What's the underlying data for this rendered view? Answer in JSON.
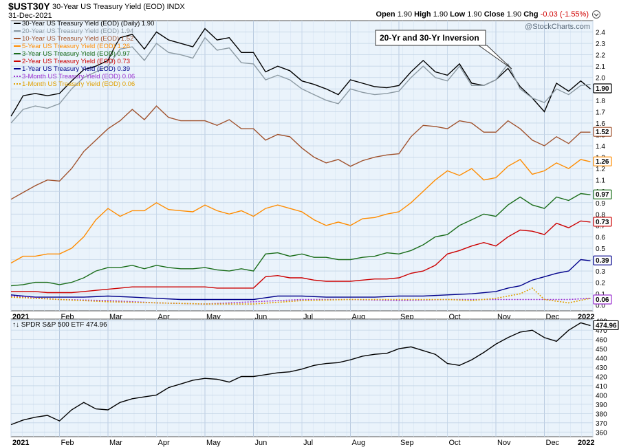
{
  "header": {
    "symbol": "$UST30Y",
    "description": "30-Year US Treasury Yield (EOD) INDX",
    "date": "31-Dec-2021",
    "open_label": "Open",
    "open": "1.90",
    "high_label": "High",
    "high": "1.90",
    "low_label": "Low",
    "low": "1.90",
    "close_label": "Close",
    "close": "1.90",
    "chg_label": "Chg",
    "chg": "-0.03 (-1.55%)",
    "chg_color": "#d00000"
  },
  "watermark": "@StockCharts.com",
  "annotation": "20-Yr and 30-Yr Inversion",
  "chart_data": [
    {
      "type": "line",
      "x_labels": [
        "2021",
        "Feb",
        "Mar",
        "Apr",
        "May",
        "Jun",
        "Jul",
        "Aug",
        "Sep",
        "Oct",
        "Nov",
        "Dec",
        "2022"
      ],
      "x_label_positions": [
        0,
        1,
        2,
        3,
        4,
        5,
        6,
        7,
        8,
        9,
        10,
        11,
        12
      ],
      "ylim": [
        -0.05,
        2.5
      ],
      "yticks": [
        "2.4",
        "2.3",
        "2.2",
        "2.1",
        "2.0",
        "1.9",
        "1.8",
        "1.7",
        "1.6",
        "1.5",
        "1.4",
        "1.3",
        "1.2",
        "1.1",
        "1.0",
        "0.9",
        "0.8",
        "0.7",
        "0.6",
        "0.5",
        "0.4",
        "0.3",
        "0.2",
        "0.1",
        "0.0"
      ],
      "grid": true,
      "legend_position": "top-left",
      "series": [
        {
          "name": "30-Year US Treasury Yield (EOD) (Daily) 1.90",
          "color": "#000000",
          "style": "solid",
          "badge": "1.90",
          "x": [
            0,
            0.1,
            0.25,
            0.5,
            0.75,
            1,
            1.25,
            1.5,
            1.75,
            2,
            2.15,
            2.25,
            2.5,
            2.75,
            3,
            3.25,
            3.5,
            3.75,
            4,
            4.25,
            4.5,
            4.75,
            5,
            5.25,
            5.5,
            5.75,
            6,
            6.25,
            6.5,
            6.75,
            7,
            7.25,
            7.5,
            7.75,
            8,
            8.25,
            8.5,
            8.75,
            9,
            9.25,
            9.5,
            9.75,
            10,
            10.25,
            10.5,
            10.75,
            11,
            11.25,
            11.5,
            11.75,
            11.95
          ],
          "y": [
            1.66,
            1.73,
            1.84,
            1.86,
            1.84,
            1.86,
            1.97,
            2.07,
            2.1,
            2.15,
            2.28,
            2.35,
            2.38,
            2.25,
            2.4,
            2.33,
            2.3,
            2.27,
            2.43,
            2.33,
            2.35,
            2.22,
            2.22,
            2.05,
            2.1,
            2.06,
            1.97,
            1.94,
            1.9,
            1.85,
            1.98,
            1.95,
            1.92,
            1.91,
            1.93,
            2.05,
            2.15,
            2.05,
            2.02,
            2.12,
            1.95,
            1.93,
            1.98,
            2.08,
            1.92,
            1.82,
            1.7,
            1.95,
            1.88,
            1.97,
            1.9
          ]
        },
        {
          "name": "20-Year US Treasury Yield (EOD) 1.94",
          "color": "#8c9aa3",
          "style": "solid",
          "badge": "1.94",
          "x": [
            0,
            0.25,
            0.5,
            0.75,
            1,
            1.25,
            1.5,
            1.75,
            2,
            2.25,
            2.5,
            2.75,
            3,
            3.25,
            3.5,
            3.75,
            4,
            4.25,
            4.5,
            4.75,
            5,
            5.25,
            5.5,
            5.75,
            6,
            6.25,
            6.5,
            6.75,
            7,
            7.25,
            7.5,
            7.75,
            8,
            8.25,
            8.5,
            8.75,
            9,
            9.25,
            9.5,
            9.75,
            10,
            10.25,
            10.5,
            10.75,
            11,
            11.25,
            11.5,
            11.75,
            11.95
          ],
          "y": [
            1.6,
            1.72,
            1.75,
            1.73,
            1.77,
            1.9,
            2.0,
            2.05,
            2.1,
            2.25,
            2.27,
            2.15,
            2.3,
            2.22,
            2.2,
            2.17,
            2.35,
            2.24,
            2.26,
            2.13,
            2.12,
            1.98,
            2.02,
            1.98,
            1.9,
            1.85,
            1.8,
            1.77,
            1.9,
            1.87,
            1.85,
            1.86,
            1.88,
            2.0,
            2.1,
            2.0,
            1.97,
            2.1,
            1.93,
            1.93,
            1.98,
            2.12,
            1.9,
            1.82,
            1.78,
            1.9,
            1.85,
            1.93,
            1.94
          ]
        },
        {
          "name": "10-Year US Treasury Yield (EOD) 1.52",
          "color": "#a0522d",
          "style": "solid",
          "badge": "1.52",
          "x": [
            0,
            0.25,
            0.5,
            0.75,
            1,
            1.25,
            1.5,
            1.75,
            2,
            2.25,
            2.5,
            2.75,
            3,
            3.25,
            3.5,
            3.75,
            4,
            4.25,
            4.5,
            4.75,
            5,
            5.25,
            5.5,
            5.75,
            6,
            6.25,
            6.5,
            6.75,
            7,
            7.25,
            7.5,
            7.75,
            8,
            8.25,
            8.5,
            8.75,
            9,
            9.25,
            9.5,
            9.75,
            10,
            10.25,
            10.5,
            10.75,
            11,
            11.25,
            11.5,
            11.75,
            11.95
          ],
          "y": [
            0.93,
            0.99,
            1.05,
            1.1,
            1.09,
            1.2,
            1.35,
            1.45,
            1.55,
            1.62,
            1.72,
            1.63,
            1.75,
            1.65,
            1.62,
            1.62,
            1.62,
            1.58,
            1.63,
            1.55,
            1.55,
            1.45,
            1.5,
            1.48,
            1.38,
            1.3,
            1.25,
            1.28,
            1.22,
            1.27,
            1.3,
            1.32,
            1.33,
            1.48,
            1.58,
            1.57,
            1.55,
            1.62,
            1.6,
            1.52,
            1.52,
            1.62,
            1.55,
            1.45,
            1.4,
            1.48,
            1.42,
            1.52,
            1.52
          ]
        },
        {
          "name": "5-Year US Treasury Yield (EOD) 1.26",
          "color": "#ff8c00",
          "style": "solid",
          "badge": "1.26",
          "x": [
            0,
            0.25,
            0.5,
            0.75,
            1,
            1.25,
            1.5,
            1.75,
            2,
            2.25,
            2.5,
            2.75,
            3,
            3.25,
            3.5,
            3.75,
            4,
            4.25,
            4.5,
            4.75,
            5,
            5.25,
            5.5,
            5.75,
            6,
            6.25,
            6.5,
            6.75,
            7,
            7.25,
            7.5,
            7.75,
            8,
            8.25,
            8.5,
            8.75,
            9,
            9.25,
            9.5,
            9.75,
            10,
            10.25,
            10.5,
            10.75,
            11,
            11.25,
            11.5,
            11.75,
            11.95
          ],
          "y": [
            0.37,
            0.43,
            0.43,
            0.45,
            0.45,
            0.5,
            0.6,
            0.75,
            0.85,
            0.78,
            0.83,
            0.83,
            0.9,
            0.84,
            0.83,
            0.82,
            0.88,
            0.83,
            0.8,
            0.83,
            0.78,
            0.85,
            0.88,
            0.85,
            0.82,
            0.75,
            0.7,
            0.73,
            0.7,
            0.76,
            0.77,
            0.8,
            0.82,
            0.9,
            1.0,
            1.1,
            1.18,
            1.14,
            1.2,
            1.1,
            1.12,
            1.22,
            1.28,
            1.15,
            1.18,
            1.25,
            1.2,
            1.28,
            1.26
          ]
        },
        {
          "name": "3-Year US Treasury Yield (EOD) 0.97",
          "color": "#1a6d1a",
          "style": "solid",
          "badge": "0.97",
          "x": [
            0,
            0.25,
            0.5,
            0.75,
            1,
            1.25,
            1.5,
            1.75,
            2,
            2.25,
            2.5,
            2.75,
            3,
            3.25,
            3.5,
            3.75,
            4,
            4.25,
            4.5,
            4.75,
            5,
            5.25,
            5.5,
            5.75,
            6,
            6.25,
            6.5,
            6.75,
            7,
            7.25,
            7.5,
            7.75,
            8,
            8.25,
            8.5,
            8.75,
            9,
            9.25,
            9.5,
            9.75,
            10,
            10.25,
            10.5,
            10.75,
            11,
            11.25,
            11.5,
            11.75,
            11.95
          ],
          "y": [
            0.17,
            0.18,
            0.2,
            0.2,
            0.18,
            0.2,
            0.24,
            0.3,
            0.33,
            0.33,
            0.35,
            0.32,
            0.35,
            0.33,
            0.32,
            0.32,
            0.33,
            0.31,
            0.3,
            0.32,
            0.3,
            0.45,
            0.46,
            0.43,
            0.45,
            0.42,
            0.42,
            0.4,
            0.4,
            0.42,
            0.43,
            0.46,
            0.45,
            0.48,
            0.53,
            0.6,
            0.62,
            0.7,
            0.75,
            0.8,
            0.78,
            0.88,
            0.95,
            0.88,
            0.85,
            0.95,
            0.92,
            0.98,
            0.97
          ]
        },
        {
          "name": "2-Year US Treasury Yield (EOD) 0.73",
          "color": "#cc0000",
          "style": "solid",
          "badge": "0.73",
          "x": [
            0,
            0.25,
            0.5,
            0.75,
            1,
            1.25,
            1.5,
            1.75,
            2,
            2.25,
            2.5,
            2.75,
            3,
            3.25,
            3.5,
            3.75,
            4,
            4.25,
            4.5,
            4.75,
            5,
            5.25,
            5.5,
            5.75,
            6,
            6.25,
            6.5,
            6.75,
            7,
            7.25,
            7.5,
            7.75,
            8,
            8.25,
            8.5,
            8.75,
            9,
            9.25,
            9.5,
            9.75,
            10,
            10.25,
            10.5,
            10.75,
            11,
            11.25,
            11.5,
            11.75,
            11.95
          ],
          "y": [
            0.12,
            0.12,
            0.12,
            0.11,
            0.11,
            0.11,
            0.12,
            0.13,
            0.14,
            0.15,
            0.16,
            0.16,
            0.16,
            0.16,
            0.16,
            0.16,
            0.16,
            0.15,
            0.15,
            0.15,
            0.15,
            0.25,
            0.26,
            0.24,
            0.24,
            0.22,
            0.21,
            0.21,
            0.21,
            0.22,
            0.23,
            0.23,
            0.24,
            0.28,
            0.3,
            0.35,
            0.45,
            0.48,
            0.52,
            0.55,
            0.52,
            0.6,
            0.66,
            0.65,
            0.62,
            0.72,
            0.68,
            0.74,
            0.73
          ]
        },
        {
          "name": "1-Year US Treasury Yield (EOD) 0.39",
          "color": "#00008b",
          "style": "solid",
          "badge": "0.39",
          "x": [
            0,
            0.5,
            1,
            1.5,
            2,
            2.5,
            3,
            3.5,
            4,
            4.5,
            5,
            5.5,
            6,
            6.5,
            7,
            7.5,
            8,
            8.5,
            9,
            9.5,
            10,
            10.25,
            10.5,
            10.75,
            11,
            11.25,
            11.5,
            11.75,
            11.95
          ],
          "y": [
            0.09,
            0.07,
            0.07,
            0.07,
            0.08,
            0.07,
            0.06,
            0.05,
            0.05,
            0.05,
            0.05,
            0.08,
            0.08,
            0.07,
            0.07,
            0.07,
            0.08,
            0.08,
            0.09,
            0.1,
            0.12,
            0.15,
            0.17,
            0.22,
            0.25,
            0.28,
            0.3,
            0.4,
            0.39
          ]
        },
        {
          "name": "3-Month US Treasury Yield (EOD) 0.06",
          "color": "#9b30d0",
          "style": "dotted",
          "badge": "0.06",
          "x": [
            0,
            1,
            2,
            3,
            4,
            5,
            6,
            7,
            8,
            9,
            10,
            10.5,
            11,
            11.5,
            11.95
          ],
          "y": [
            0.08,
            0.05,
            0.04,
            0.02,
            0.01,
            0.03,
            0.05,
            0.05,
            0.04,
            0.05,
            0.05,
            0.05,
            0.05,
            0.05,
            0.06
          ]
        },
        {
          "name": "1-Month US Treasury Yield (EOD) 0.06",
          "color": "#e0a000",
          "style": "dotted",
          "badge": "0.06",
          "x": [
            0,
            1,
            2,
            3,
            4,
            5,
            6,
            7,
            8,
            9,
            9.5,
            10,
            10.5,
            10.75,
            11,
            11.5,
            11.95
          ],
          "y": [
            0.07,
            0.05,
            0.03,
            0.02,
            0.01,
            0.01,
            0.04,
            0.05,
            0.05,
            0.05,
            0.04,
            0.06,
            0.1,
            0.15,
            0.05,
            0.02,
            0.06
          ]
        }
      ]
    },
    {
      "type": "line",
      "x_labels": [
        "2021",
        "Feb",
        "Mar",
        "Apr",
        "May",
        "Jun",
        "Jul",
        "Aug",
        "Sep",
        "Oct",
        "Nov",
        "Dec",
        "2022"
      ],
      "x_label_positions": [
        0,
        1,
        2,
        3,
        4,
        5,
        6,
        7,
        8,
        9,
        10,
        11,
        12
      ],
      "ylim": [
        355,
        482
      ],
      "yticks": [
        "480",
        "470",
        "460",
        "450",
        "440",
        "430",
        "420",
        "410",
        "400",
        "390",
        "380",
        "370",
        "360"
      ],
      "grid": true,
      "series": [
        {
          "name": "SPDR S&P 500 ETF 474.96",
          "color": "#000000",
          "style": "solid",
          "badge": "474.96",
          "x": [
            0,
            0.25,
            0.5,
            0.75,
            1,
            1.25,
            1.5,
            1.75,
            2,
            2.25,
            2.5,
            2.75,
            3,
            3.25,
            3.5,
            3.75,
            4,
            4.25,
            4.5,
            4.75,
            5,
            5.25,
            5.5,
            5.75,
            6,
            6.25,
            6.5,
            6.75,
            7,
            7.25,
            7.5,
            7.75,
            8,
            8.25,
            8.5,
            8.75,
            9,
            9.25,
            9.5,
            9.75,
            10,
            10.25,
            10.5,
            10.75,
            11,
            11.25,
            11.5,
            11.75,
            11.95
          ],
          "y": [
            368,
            373,
            376,
            378,
            372,
            384,
            392,
            385,
            384,
            392,
            396,
            398,
            400,
            408,
            412,
            416,
            418,
            417,
            414,
            420,
            420,
            422,
            424,
            425,
            428,
            432,
            434,
            435,
            438,
            442,
            444,
            445,
            450,
            452,
            448,
            444,
            434,
            432,
            438,
            446,
            455,
            462,
            468,
            470,
            462,
            458,
            470,
            478,
            475
          ]
        }
      ]
    }
  ],
  "lower_title": "SPDR S&P 500 ETF 474.96"
}
